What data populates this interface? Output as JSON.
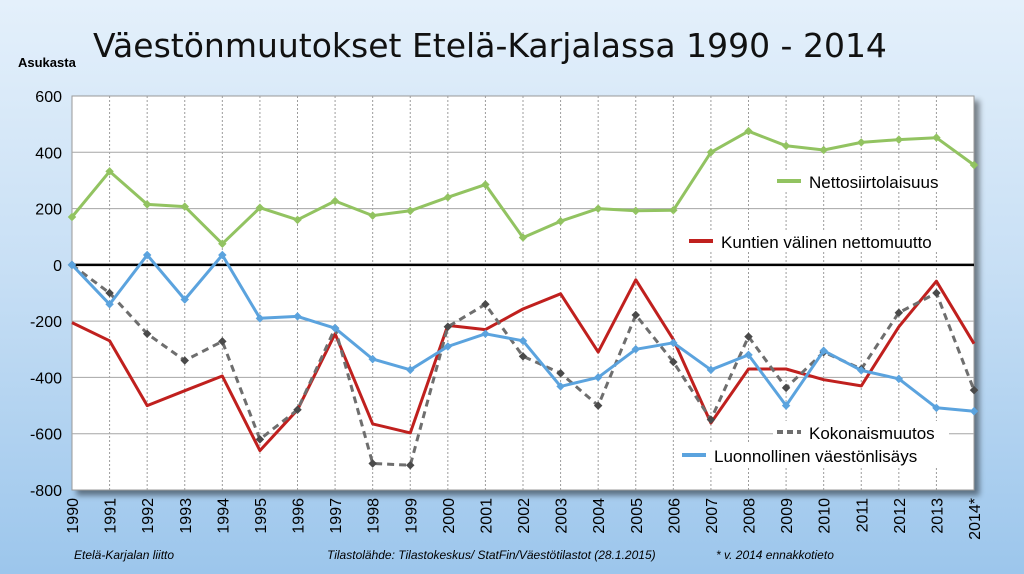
{
  "chart_data": {
    "type": "line",
    "title": "Väestönmuutokset Etelä-Karjalassa 1990 - 2014",
    "ylabel": "Asukasta",
    "xlabel": "",
    "ylim": [
      -800,
      600
    ],
    "yticks": [
      600,
      400,
      200,
      0,
      -200,
      -400,
      -600,
      -800
    ],
    "categories": [
      "1990",
      "1991",
      "1992",
      "1993",
      "1994",
      "1995",
      "1996",
      "1997",
      "1998",
      "1999",
      "2000",
      "2001",
      "2002",
      "2003",
      "2004",
      "2005",
      "2006",
      "2007",
      "2008",
      "2009",
      "2010",
      "2011",
      "2012",
      "2013",
      "2014*"
    ],
    "grid": true,
    "series": [
      {
        "name": "Nettosiirtolaisuus",
        "color": "#92c361",
        "style": "solid",
        "values": [
          170,
          332,
          215,
          207,
          75,
          203,
          160,
          227,
          175,
          192,
          240,
          285,
          97,
          155,
          200,
          192,
          194,
          400,
          475,
          423,
          408,
          435,
          445,
          452,
          355
        ]
      },
      {
        "name": "Kuntien välinen nettomuutto",
        "color": "#c0201e",
        "style": "solid",
        "values": [
          -205,
          -270,
          -500,
          -447,
          -395,
          -660,
          -515,
          -245,
          -565,
          -597,
          -215,
          -230,
          -157,
          -103,
          -310,
          -53,
          -265,
          -562,
          -370,
          -370,
          -408,
          -430,
          -220,
          -58,
          -280
        ]
      },
      {
        "name": "Kokonaismuutos",
        "color": "#6e6e6e",
        "style": "dashed",
        "values": [
          0,
          -100,
          -245,
          -340,
          -272,
          -620,
          -515,
          -225,
          -706,
          -712,
          -220,
          -140,
          -325,
          -385,
          -500,
          -178,
          -345,
          -550,
          -255,
          -437,
          -310,
          -370,
          -170,
          -100,
          -445
        ]
      },
      {
        "name": "Luonnollinen väestönlisäys",
        "color": "#5ba3de",
        "style": "solid",
        "values": [
          0,
          -140,
          35,
          -123,
          35,
          -190,
          -183,
          -225,
          -335,
          -373,
          -290,
          -245,
          -270,
          -432,
          -400,
          -300,
          -277,
          -373,
          -320,
          -500,
          -305,
          -375,
          -405,
          -508,
          -520
        ]
      }
    ]
  },
  "footer": {
    "source_org": "Etelä-Karjalan liitto",
    "source": "Tilastolähde: Tilastokeskus/ StatFin/Väestötilastot (28.1.2015)",
    "note": "* v. 2014 ennakkotieto"
  }
}
